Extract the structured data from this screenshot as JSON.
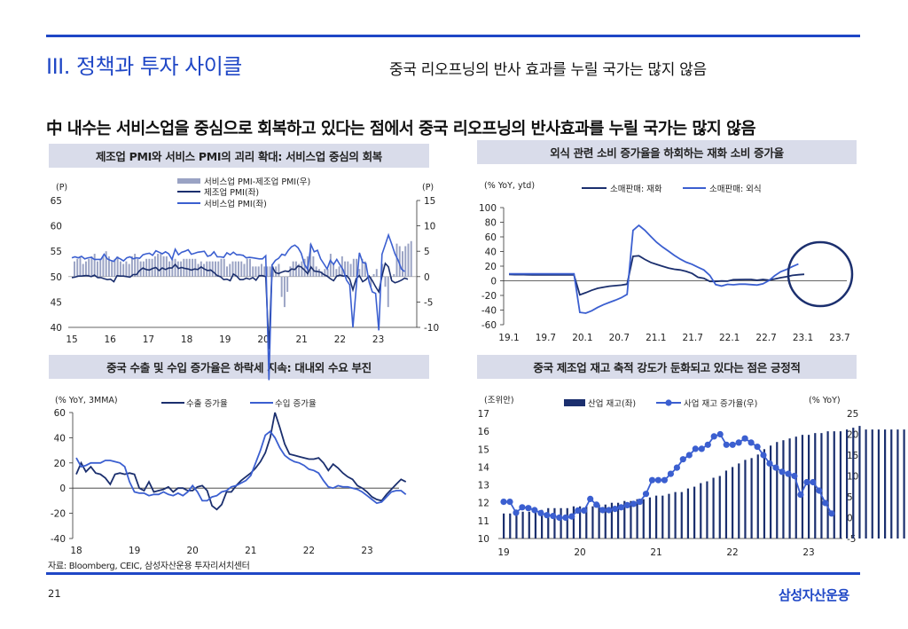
{
  "header": {
    "section_title": "III. 정책과 투자 사이클",
    "subtitle": "중국 리오프닝의 반사 효과를 누릴 국가는 많지 않음"
  },
  "headline": "中 내수는 서비스업을 중심으로 회복하고 있다는 점에서 중국 리오프닝의 반사효과를 누릴 국가는 많지 않음",
  "panels": {
    "pmi": {
      "title": "제조업 PMI와 서비스 PMI의 괴리 확대: 서비스업 중심의 회복"
    },
    "retail": {
      "title": "외식 관련 소비 증가율을 하회하는 재화 소비 증가율"
    },
    "trade": {
      "title": "중국 수출 및 수입 증가율은 하락세 지속: 대내외 수요 부진"
    },
    "inventory": {
      "title": "중국 제조업 재고 축적 강도가 둔화되고 있다는 점은 긍정적"
    }
  },
  "footer": {
    "source": "자료: Bloomberg, CEIC, 삼성자산운용 투자리서치센터",
    "page_number": "21",
    "brand": "삼성자산운용"
  },
  "colors": {
    "accent": "#1f47c6",
    "navy": "#1b2f6e",
    "blue": "#3b5fd0",
    "bar_gray": "#9aa3c4",
    "panel_bg": "#d9dcea"
  },
  "chart_data": [
    {
      "id": "pmi",
      "type": "line",
      "title": "제조업 PMI와 서비스 PMI의 괴리 확대: 서비스업 중심의 회복",
      "left_unit": "(P)",
      "right_unit": "(P)",
      "ylim": [
        40,
        65
      ],
      "yticks": [
        "40",
        "45",
        "50",
        "55",
        "60",
        "65"
      ],
      "ylim_right": [
        -10,
        15
      ],
      "yticks_right": [
        "-10",
        "-5",
        "0",
        "5",
        "10",
        "15"
      ],
      "x_start": 15,
      "xticks": [
        "15",
        "16",
        "17",
        "18",
        "19",
        "20",
        "21",
        "22",
        "23"
      ],
      "series": [
        {
          "name": "서비스업 PMI-제조업 PMI(우)",
          "kind": "bar",
          "axis": "right",
          "color": "#9aa3c4",
          "values": [
            3,
            3.5,
            4,
            2.5,
            3,
            3.5,
            4,
            4.5,
            3,
            3.5,
            4,
            5,
            4,
            3,
            3.5,
            4,
            3,
            2.5,
            3,
            2.5,
            4,
            4.5,
            3.5,
            3,
            3,
            3.5,
            3.5,
            3.5,
            4,
            4.5,
            4.5,
            4,
            4,
            3,
            3.5,
            3.5,
            3,
            3,
            3.5,
            3.5,
            3.5,
            3.5,
            3.5,
            2.5,
            3,
            2.5,
            3,
            3,
            3,
            3,
            3,
            3.5,
            3.5,
            2,
            2.5,
            3,
            3,
            3,
            3,
            2.5,
            3.5,
            3.5,
            2,
            2,
            2,
            2.5,
            2,
            2,
            2,
            2,
            2,
            2.5,
            -4,
            -6,
            -3,
            2,
            3,
            3,
            2.5,
            3,
            3.5,
            4,
            6.5,
            4,
            2,
            1.5,
            1,
            1.5,
            1.5,
            4.5,
            2.5,
            1.5,
            2,
            4,
            3,
            3,
            2.5,
            3.5,
            3.5,
            1.5,
            3.5,
            3,
            0,
            -2,
            0.5,
            1.5,
            0,
            2.5,
            -2,
            -6,
            -0.5,
            0.5,
            6.5,
            6,
            5,
            6,
            6.5,
            7
          ]
        },
        {
          "name": "제조업 PMI(좌)",
          "kind": "line",
          "axis": "left",
          "color": "#1b2f6e",
          "values": [
            49.8,
            49.9,
            50.1,
            50.1,
            50.2,
            50.2,
            50,
            50.3,
            49.8,
            49.8,
            49.6,
            49.4,
            49.5,
            49,
            50.2,
            50.1,
            50.1,
            50,
            49.9,
            50.4,
            50.4,
            51.2,
            51.7,
            51.4,
            51.3,
            51.6,
            51.8,
            51.2,
            51.7,
            51.4,
            51.7,
            51.7,
            52.4,
            51.6,
            51.8,
            51.6,
            51.5,
            51.3,
            51.5,
            51.4,
            51.9,
            51.5,
            51.2,
            51.3,
            50.8,
            50.2,
            50,
            49.4,
            49.5,
            49.2,
            50.5,
            50.1,
            49.4,
            49.4,
            49.7,
            49.5,
            49.8,
            49.3,
            50.2,
            50.2,
            50,
            35.7,
            52,
            50.8,
            50.6,
            50.9,
            51.1,
            51,
            51.5,
            51.4,
            52.1,
            51.9,
            51.3,
            50.6,
            51.9,
            51.1,
            51,
            50.9,
            50.4,
            50.1,
            49.6,
            49.2,
            50.1,
            50.3,
            50.1,
            50.2,
            49.5,
            47.4,
            49.6,
            50.2,
            49,
            49.4,
            50.1,
            49.2,
            48,
            47,
            50.1,
            52.6,
            51.9,
            49.2,
            48.8,
            49,
            49.3,
            49.7,
            49.5
          ]
        },
        {
          "name": "서비스업 PMI(좌)",
          "kind": "line",
          "axis": "left",
          "color": "#3b5fd0",
          "values": [
            53.7,
            53.9,
            53.7,
            54,
            53.5,
            53.7,
            53.8,
            53.4,
            53.4,
            53.4,
            54.4,
            53.5,
            53.2,
            53,
            53.8,
            53.5,
            53.1,
            53.7,
            53.9,
            53.5,
            53.7,
            53.6,
            54.3,
            54.5,
            54.6,
            54.2,
            55.1,
            54.8,
            54.5,
            54.9,
            54.5,
            53.4,
            55.4,
            54.3,
            54.8,
            55,
            55.3,
            54.4,
            54.6,
            54.8,
            54.9,
            55,
            54,
            54.2,
            54.9,
            53.9,
            53.9,
            53.8,
            54.7,
            54.3,
            54.8,
            54.3,
            54.3,
            54.2,
            53.7,
            53.8,
            53.7,
            53.6,
            53.5,
            53.5,
            54.1,
            29.6,
            52.3,
            53.2,
            53.6,
            54.4,
            54.2,
            55.2,
            55.9,
            56.2,
            55.7,
            54.6,
            52.4,
            51.4,
            56.3,
            54.9,
            55.2,
            53.5,
            52.5,
            51.5,
            53.2,
            52.4,
            53.4,
            52.3,
            51.3,
            49.3,
            48.4,
            40,
            47.8,
            54.7,
            52.8,
            52.6,
            48.9,
            47,
            46.7,
            39.4,
            54.4,
            56.3,
            58.2,
            56.4,
            54.5,
            53.2,
            51.5,
            51
          ]
        }
      ]
    },
    {
      "id": "retail",
      "type": "line",
      "title": "외식 관련 소비 증가율을 하회하는 재화 소비 증가율",
      "ylabel": "(% YoY, ytd)",
      "ylim": [
        -60,
        100
      ],
      "yticks": [
        "-60",
        "-40",
        "-20",
        "0",
        "20",
        "40",
        "60",
        "80",
        "100"
      ],
      "xticks": [
        "19.1",
        "19.7",
        "20.1",
        "20.7",
        "21.1",
        "21.7",
        "22.1",
        "22.7",
        "23.1",
        "23.7"
      ],
      "series": [
        {
          "name": "소매판매: 재화",
          "color": "#1b2f6e",
          "values": [
            8.6,
            8.4,
            8.5,
            8.2,
            8.1,
            8.1,
            8.1,
            8.1,
            8.1,
            8.1,
            8.0,
            8.0,
            -19.2,
            -16.2,
            -13.0,
            -10.3,
            -8.8,
            -7.4,
            -6.7,
            -5.9,
            -4.6,
            33.4,
            34.2,
            29.2,
            25.1,
            22.4,
            19.9,
            17.5,
            15.7,
            14.8,
            12.9,
            10.1,
            4.9,
            3.4,
            -0.9,
            -0.8,
            -0.2,
            -0.5,
            1.4,
            1.7,
            1.8,
            1.8,
            0.7,
            1.8,
            0.8,
            2.4,
            4.3,
            5.6,
            7.4,
            8.2,
            8.8
          ]
        },
        {
          "name": "소매판매: 외식",
          "color": "#3b5fd0",
          "values": [
            9.5,
            9.5,
            9.5,
            9.4,
            9.4,
            9.4,
            9.4,
            9.4,
            9.4,
            9.4,
            9.4,
            9.4,
            -43.1,
            -44.3,
            -41.0,
            -36.5,
            -32.6,
            -29.6,
            -26.6,
            -23.2,
            -18.6,
            68.9,
            75.7,
            69.1,
            60.6,
            52.6,
            46.2,
            40.6,
            34.7,
            29.6,
            25.4,
            22.6,
            18.6,
            14.8,
            7.4,
            -5.2,
            -7.2,
            -4.9,
            -5.5,
            -4.6,
            -4.6,
            -5.2,
            -5.8,
            -4.1,
            0.3,
            7.0,
            12.4,
            15.5,
            19.5,
            22.9
          ]
        }
      ]
    },
    {
      "id": "trade",
      "type": "line",
      "title": "중국 수출 및 수입 증가율은 하락세 지속: 대내외 수요 부진",
      "ylabel": "(% YoY, 3MMA)",
      "ylim": [
        -40,
        60
      ],
      "yticks": [
        "-40",
        "-20",
        "0",
        "20",
        "40",
        "60"
      ],
      "x_start": 18,
      "xticks": [
        "18",
        "19",
        "20",
        "21",
        "22",
        "23"
      ],
      "series": [
        {
          "name": "수출 증가율",
          "color": "#1b2f6e",
          "values": [
            11,
            20,
            13,
            17,
            12,
            11,
            8,
            3,
            11,
            12,
            11,
            12,
            11,
            0,
            -2,
            5,
            -3,
            -2,
            -1,
            1,
            -3,
            0,
            0,
            -2,
            -2,
            1,
            2,
            -2,
            -14,
            -17,
            -13,
            -3,
            -3,
            2,
            6,
            9,
            12,
            16,
            21,
            28,
            40,
            60,
            48,
            35,
            27,
            26,
            25,
            24,
            23,
            23,
            24,
            20,
            14,
            19,
            16,
            12,
            9,
            7,
            2,
            0,
            -3,
            -7,
            -9,
            -10,
            -5,
            -1,
            3,
            7,
            5
          ]
        },
        {
          "name": "수입 증가율",
          "color": "#3b5fd0",
          "values": [
            24,
            17,
            18,
            20,
            20,
            20,
            22,
            22,
            21,
            20,
            17,
            5,
            -3,
            -4,
            -4,
            -6,
            -5,
            -5,
            -3,
            -5,
            -6,
            -4,
            -6,
            -3,
            2,
            -3,
            -10,
            -10,
            -7,
            -6,
            -3,
            -2,
            1,
            2,
            4,
            6,
            10,
            20,
            30,
            42,
            45,
            40,
            32,
            26,
            23,
            21,
            20,
            18,
            15,
            14,
            12,
            6,
            1,
            0,
            2,
            1,
            1,
            0,
            -1,
            -3,
            -6,
            -9,
            -12,
            -11,
            -7,
            -3,
            -2,
            -2,
            -5
          ]
        }
      ]
    },
    {
      "id": "inventory",
      "type": "bar",
      "title": "중국 제조업 재고 축적 강도가 둔화되고 있다는 점은 긍정적",
      "left_unit": "(조위안)",
      "right_unit": "(% YoY)",
      "ylim": [
        10,
        17
      ],
      "yticks": [
        "10",
        "11",
        "12",
        "13",
        "14",
        "15",
        "16",
        "17"
      ],
      "ylim_right": [
        -5,
        25
      ],
      "yticks_right": [
        "-5",
        "0",
        "5",
        "10",
        "15",
        "20",
        "25"
      ],
      "x_start": 19,
      "xticks": [
        "19",
        "20",
        "21",
        "22",
        "23"
      ],
      "series": [
        {
          "name": "산업 재고(좌)",
          "kind": "bar",
          "axis": "left",
          "color": "#1b2f6e",
          "values": [
            11.4,
            11.4,
            11.5,
            11.5,
            11.5,
            11.6,
            11.6,
            11.7,
            11.7,
            11.7,
            11.7,
            11.8,
            11.8,
            11.8,
            11.8,
            11.9,
            11.9,
            12,
            12,
            12.1,
            12.1,
            12.2,
            12.2,
            12.3,
            12.4,
            12.4,
            12.5,
            12.6,
            12.6,
            12.8,
            12.9,
            13.1,
            13.2,
            13.4,
            13.5,
            13.8,
            14,
            14.2,
            14.4,
            14.5,
            14.7,
            15,
            15.2,
            15.4,
            15.5,
            15.6,
            15.7,
            15.8,
            15.8,
            15.9,
            15.9,
            16,
            16,
            16,
            16.1,
            16.2,
            16.3,
            16.1,
            16.1,
            16.1,
            16.1,
            16.1,
            16.1,
            16.1,
            16.1
          ]
        },
        {
          "name": "사업 재고 증가율(우)",
          "kind": "line",
          "axis": "right",
          "color": "#3b5fd0",
          "values": [
            3.8,
            3.8,
            1.2,
            2.5,
            2.3,
            1.8,
            1.1,
            0.6,
            0.4,
            0,
            0,
            0.3,
            1.7,
            1.7,
            4.5,
            3.1,
            1.8,
            1.8,
            2.1,
            2.5,
            3,
            3.3,
            3.8,
            5.7,
            9,
            9,
            9,
            10.5,
            12,
            14,
            15,
            16.5,
            16.5,
            17.5,
            19.5,
            20,
            17.5,
            17.5,
            18,
            19,
            18,
            17,
            15,
            13,
            12,
            11,
            10.5,
            10,
            5.5,
            8.5,
            8.5,
            6.5,
            3.5,
            1
          ]
        }
      ]
    }
  ]
}
